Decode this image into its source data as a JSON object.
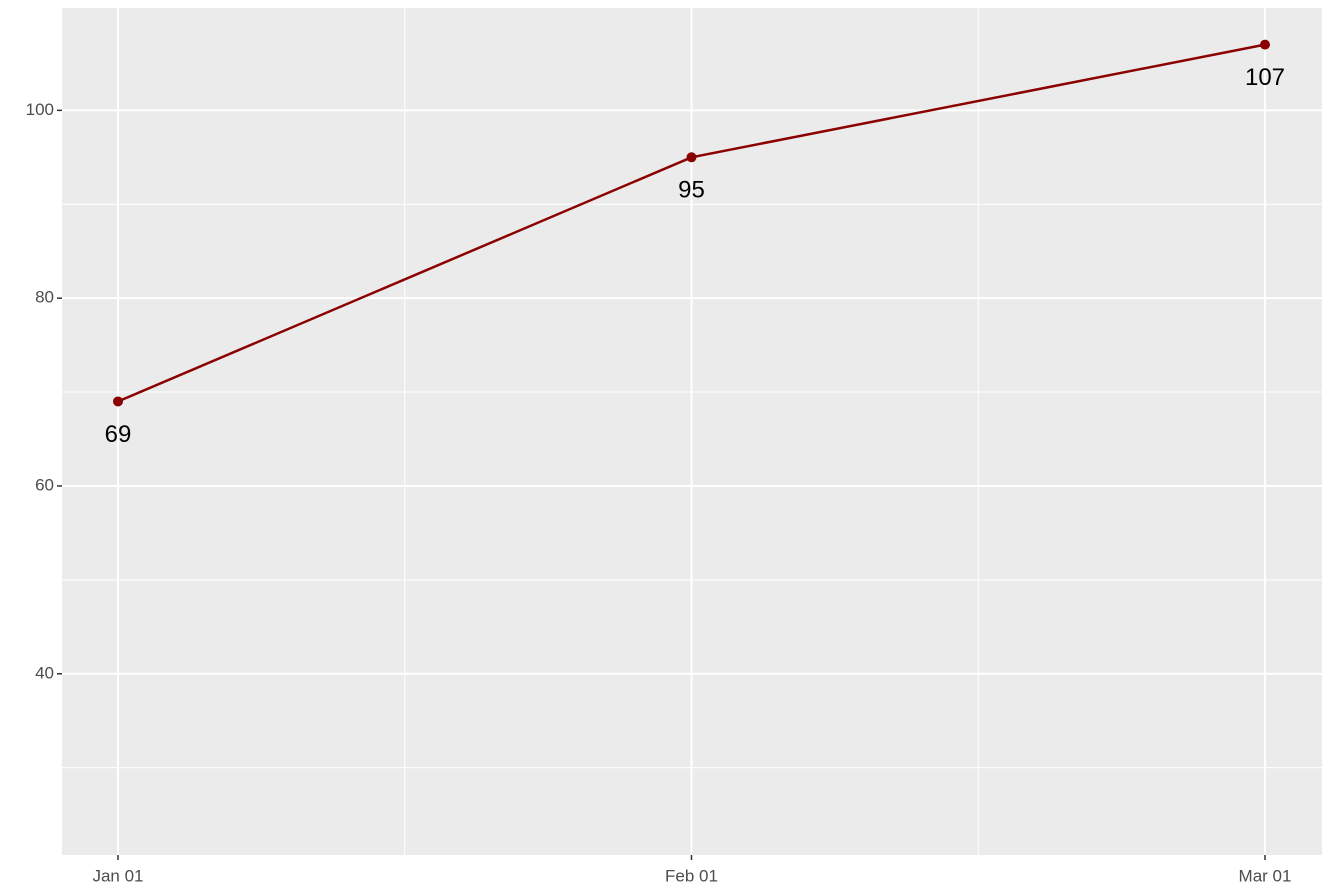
{
  "chart_data": {
    "type": "line",
    "x": [
      "Jan 01",
      "Feb 01",
      "Mar 01"
    ],
    "series": [
      {
        "color": "#8b0000",
        "values": [
          69,
          95,
          107
        ]
      }
    ],
    "ylim": [
      20.7,
      110.9
    ],
    "yticks": [
      40,
      60,
      80,
      100
    ],
    "grid": true
  }
}
